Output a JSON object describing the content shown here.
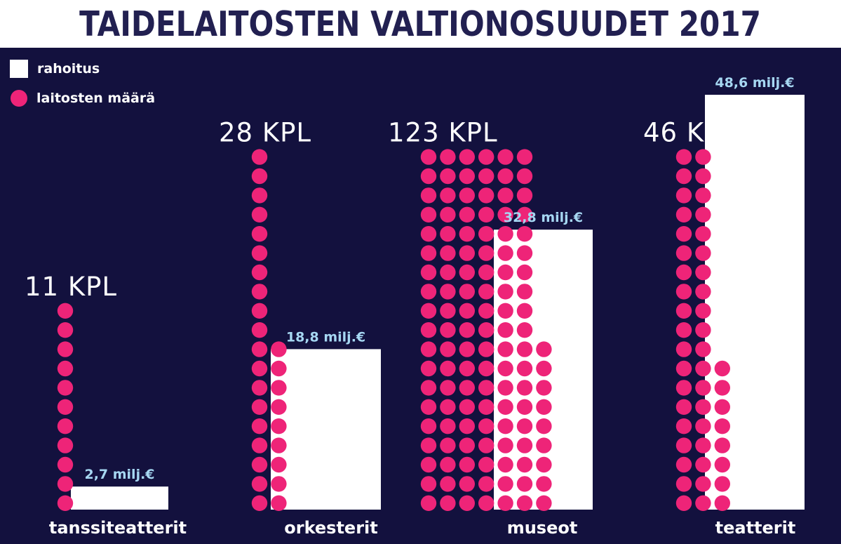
{
  "title": "TAIDELAITOSTEN VALTIONOSUUDET 2017",
  "legend": {
    "funding_label": "rahoitus",
    "count_label": "laitosten määrä"
  },
  "colors": {
    "background": "#13113e",
    "title_band": "#ffffff",
    "title_text": "#222051",
    "bar": "#ffffff",
    "dot": "#ee2478",
    "funding_label": "#a6d7f2",
    "count_label": "#ffffff"
  },
  "chart_data": {
    "type": "bar",
    "title": "TAIDELAITOSTEN VALTIONOSUUDET 2017",
    "categories": [
      "tanssiteatterit",
      "orkesterit",
      "museot",
      "teatterit"
    ],
    "series": [
      {
        "name": "rahoitus",
        "unit": "milj.€",
        "values": [
          2.7,
          18.8,
          32.8,
          48.6
        ],
        "labels": [
          "2,7 milj.€",
          "18,8 milj.€",
          "32,8 milj.€",
          "48,6 milj.€"
        ]
      },
      {
        "name": "laitosten määrä",
        "unit": "KPL",
        "values": [
          11,
          28,
          123,
          46
        ],
        "labels": [
          "11 KPL",
          "28 KPL",
          "123 KPL",
          "46 KPL"
        ]
      }
    ],
    "legend": "top-left",
    "grid": false
  }
}
